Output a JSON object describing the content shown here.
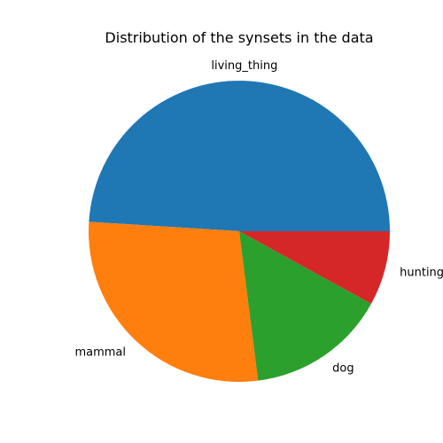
{
  "chart_data": {
    "type": "pie",
    "title": "Distribution of the synsets in the data",
    "start_angle": "east",
    "direction": "counterclockwise",
    "slices": [
      {
        "label": "living_thing",
        "value": 49,
        "color": "#1f77b4"
      },
      {
        "label": "mammal",
        "value": 28,
        "color": "#ff7f0e"
      },
      {
        "label": "dog",
        "value": 15,
        "color": "#2ca02c"
      },
      {
        "label": "hunting_dog",
        "value": 8,
        "color": "#d62728"
      }
    ]
  }
}
